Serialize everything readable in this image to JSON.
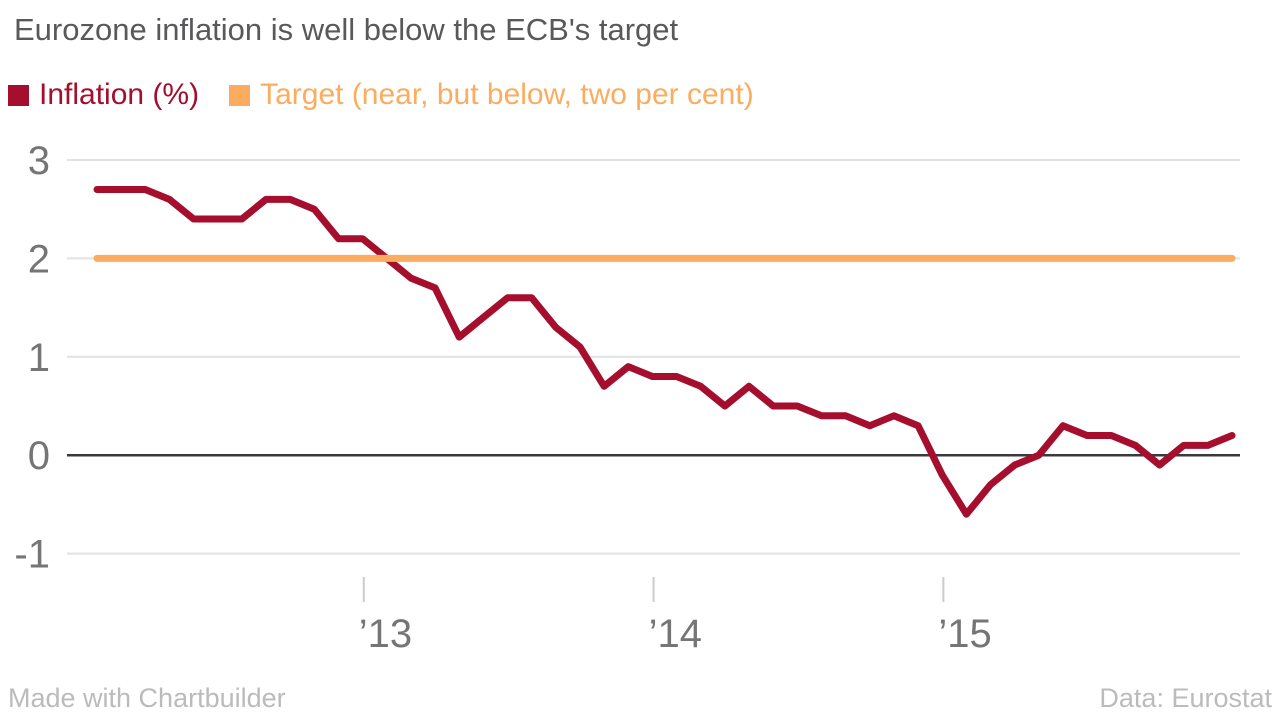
{
  "title": "Eurozone inflation is well below the ECB's target",
  "footer": {
    "credit": "Made with Chartbuilder",
    "source": "Data: Eurostat"
  },
  "colors": {
    "title_text": "#59595B",
    "axis_text": "#757575",
    "gridline": "#E2E2E2",
    "zero_line": "#3A3A3A",
    "tick_mark": "#CCCCCC",
    "footer_text": "#BBBBBB",
    "inflation_line": "#A50E2D",
    "target_line": "#FBAC60"
  },
  "chart_data": {
    "type": "line",
    "title": "Eurozone inflation is well below the ECB's target",
    "xlabel": "",
    "ylabel": "",
    "x_unit": "month",
    "x": [
      "2012-01",
      "2012-02",
      "2012-03",
      "2012-04",
      "2012-05",
      "2012-06",
      "2012-07",
      "2012-08",
      "2012-09",
      "2012-10",
      "2012-11",
      "2012-12",
      "2013-01",
      "2013-02",
      "2013-03",
      "2013-04",
      "2013-05",
      "2013-06",
      "2013-07",
      "2013-08",
      "2013-09",
      "2013-10",
      "2013-11",
      "2013-12",
      "2014-01",
      "2014-02",
      "2014-03",
      "2014-04",
      "2014-05",
      "2014-06",
      "2014-07",
      "2014-08",
      "2014-09",
      "2014-10",
      "2014-11",
      "2014-12",
      "2015-01",
      "2015-02",
      "2015-03",
      "2015-04",
      "2015-05",
      "2015-06",
      "2015-07",
      "2015-08",
      "2015-09",
      "2015-10",
      "2015-11",
      "2015-12"
    ],
    "series": [
      {
        "name": "Inflation (%)",
        "color": "#A50E2D",
        "values": [
          2.7,
          2.7,
          2.7,
          2.6,
          2.4,
          2.4,
          2.4,
          2.6,
          2.6,
          2.5,
          2.2,
          2.2,
          2.0,
          1.8,
          1.7,
          1.2,
          1.4,
          1.6,
          1.6,
          1.3,
          1.1,
          0.7,
          0.9,
          0.8,
          0.8,
          0.7,
          0.5,
          0.7,
          0.5,
          0.5,
          0.4,
          0.4,
          0.3,
          0.4,
          0.3,
          -0.2,
          -0.6,
          -0.3,
          -0.1,
          0.0,
          0.3,
          0.2,
          0.2,
          0.1,
          -0.1,
          0.1,
          0.1,
          0.2
        ]
      },
      {
        "name": "Target (near, but below, two per cent)",
        "color": "#FBAC60",
        "constant_value": 2.0
      }
    ],
    "ylim": [
      -1,
      3
    ],
    "yticks": [
      "3",
      "2",
      "1",
      "0",
      "-1"
    ],
    "ytick_values": [
      3,
      2,
      1,
      0,
      -1
    ],
    "xticks": [
      {
        "label": "’13",
        "month_index": 12
      },
      {
        "label": "’14",
        "month_index": 24
      },
      {
        "label": "’15",
        "month_index": 36
      }
    ],
    "grid": true,
    "zero_line": true,
    "legend_position": "top-left"
  }
}
